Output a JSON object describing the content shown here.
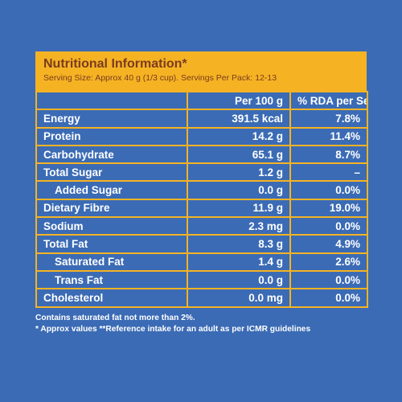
{
  "header": {
    "title": "Nutritional Information*",
    "serving": "Serving Size: Approx 40 g (1/3 cup). Servings Per Pack: 12-13"
  },
  "table": {
    "col_per100": "Per 100 g",
    "col_rda": "% RDA per Serve**",
    "rows": [
      {
        "name": "Energy",
        "per100": "391.5 kcal",
        "rda": "7.8%"
      },
      {
        "name": "Protein",
        "per100": "14.2 g",
        "rda": "11.4%"
      },
      {
        "name": "Carbohydrate",
        "per100": "65.1 g",
        "rda": "8.7%"
      },
      {
        "name": "Total Sugar",
        "per100": "1.2 g",
        "rda": "–"
      },
      {
        "name": "Added Sugar",
        "per100": "0.0 g",
        "rda": "0.0%"
      },
      {
        "name": "Dietary Fibre",
        "per100": "11.9 g",
        "rda": "19.0%"
      },
      {
        "name": "Sodium",
        "per100": "2.3 mg",
        "rda": "0.0%"
      },
      {
        "name": "Total Fat",
        "per100": "8.3 g",
        "rda": "4.9%"
      },
      {
        "name": "Saturated Fat",
        "per100": "1.4 g",
        "rda": "2.6%"
      },
      {
        "name": "Trans Fat",
        "per100": "0.0 g",
        "rda": "0.0%"
      },
      {
        "name": "Cholesterol",
        "per100": "0.0 mg",
        "rda": "0.0%"
      }
    ]
  },
  "footer": {
    "line1": "Contains saturated fat not more than 2%.",
    "line2": "* Approx values **Reference intake for an adult as per ICMR guidelines"
  }
}
